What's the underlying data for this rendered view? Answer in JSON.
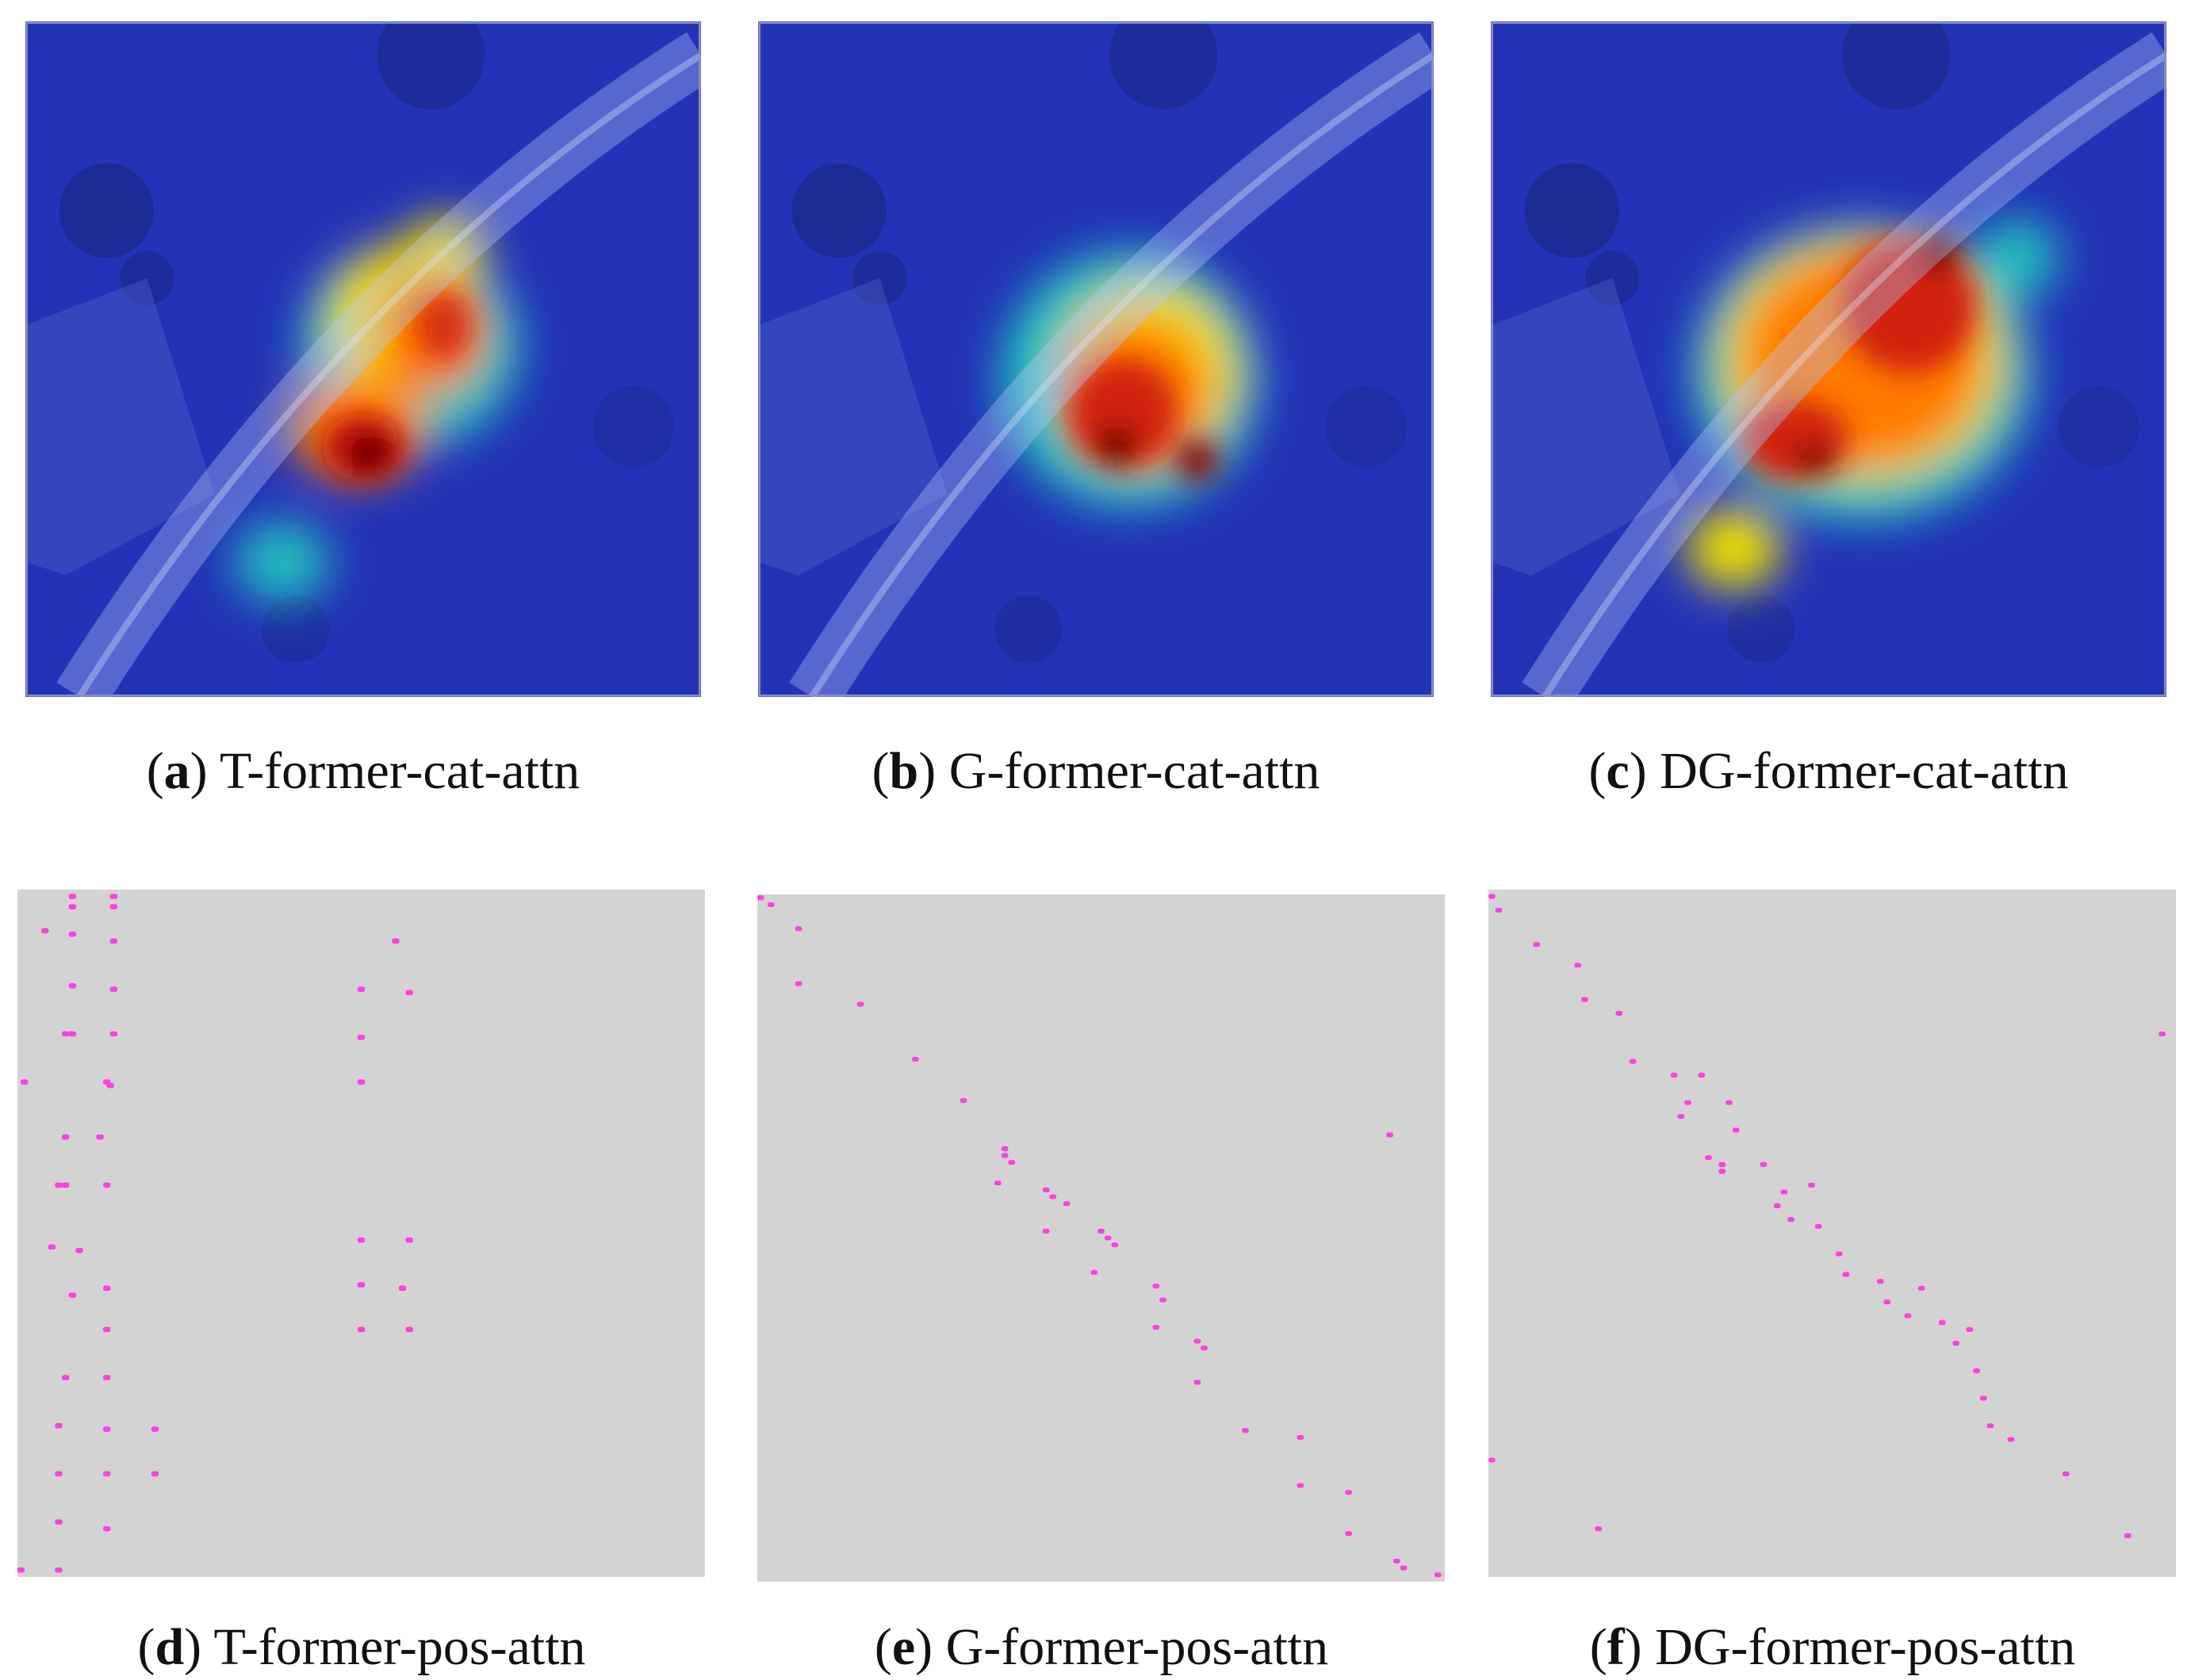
{
  "figure": {
    "panels": [
      {
        "id": "a",
        "letter": "a",
        "label": "T-former-cat-attn",
        "kind": "heatmap-overlay"
      },
      {
        "id": "b",
        "letter": "b",
        "label": "G-former-cat-attn",
        "kind": "heatmap-overlay"
      },
      {
        "id": "c",
        "letter": "c",
        "label": "DG-former-cat-attn",
        "kind": "heatmap-overlay"
      },
      {
        "id": "d",
        "letter": "d",
        "label": "T-former-pos-attn",
        "kind": "sparse-attention-map"
      },
      {
        "id": "e",
        "letter": "e",
        "label": "G-former-pos-attn",
        "kind": "sparse-attention-map"
      },
      {
        "id": "f",
        "letter": "f",
        "label": "DG-former-pos-attn",
        "kind": "sparse-attention-map"
      }
    ]
  },
  "colors": {
    "heatmap_base": "#1f2fb0",
    "heatmap_hot": "#b01010",
    "map_background": "#d3d3d3",
    "map_dot": "#ff3fe0"
  }
}
